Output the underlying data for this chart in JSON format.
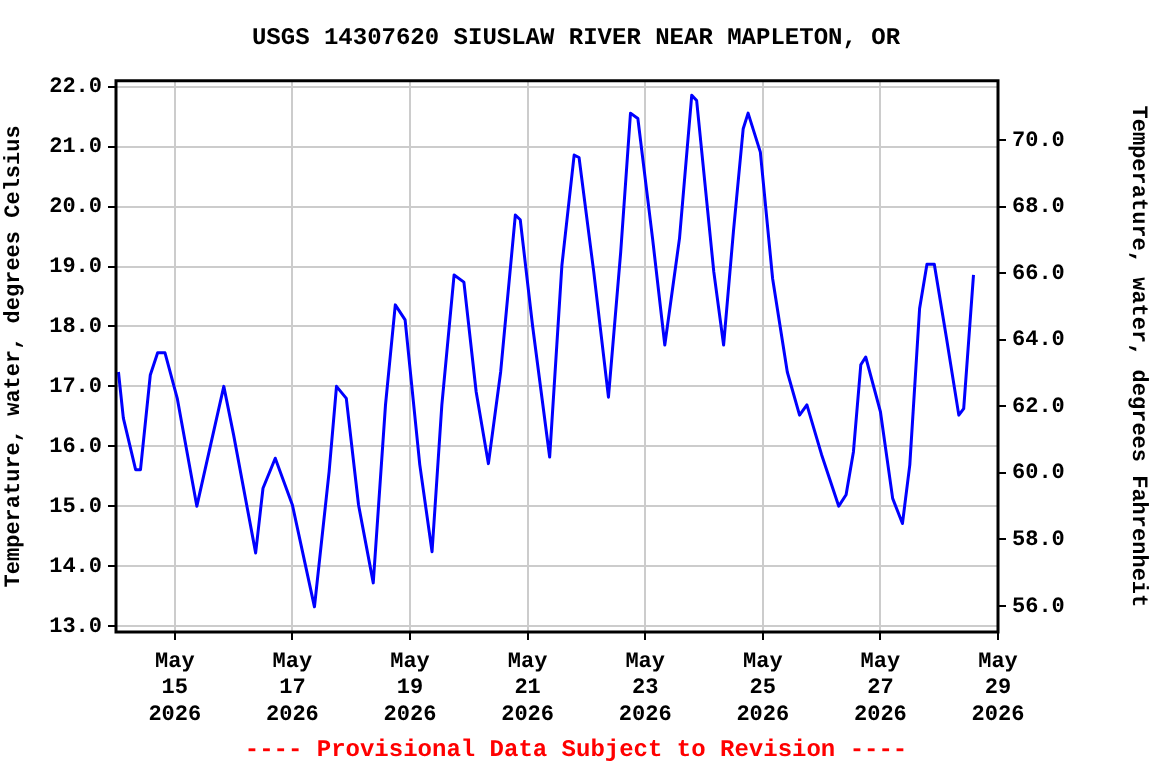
{
  "chart_data": {
    "type": "line",
    "title": "USGS 14307620 SIUSLAW RIVER NEAR MAPLETON, OR",
    "ylabel": "Temperature, water, degrees Celsius",
    "y2label": "Temperature, water, degrees Fahrenheit",
    "annotations": [
      "---- Provisional Data Subject to Revision ----"
    ],
    "x": [
      "2026-05-14T01:00",
      "2026-05-14T03:00",
      "2026-05-14T08:00",
      "2026-05-14T10:00",
      "2026-05-14T14:00",
      "2026-05-14T17:00",
      "2026-05-14T20:00",
      "2026-05-15T01:00",
      "2026-05-15T09:00",
      "2026-05-15T14:00",
      "2026-05-15T20:00",
      "2026-05-16T00:00",
      "2026-05-16T09:00",
      "2026-05-16T12:00",
      "2026-05-16T17:00",
      "2026-05-17T00:00",
      "2026-05-17T09:00",
      "2026-05-17T15:00",
      "2026-05-17T18:00",
      "2026-05-17T22:00",
      "2026-05-18T03:00",
      "2026-05-18T09:00",
      "2026-05-18T14:00",
      "2026-05-18T18:00",
      "2026-05-18T22:00",
      "2026-05-19T04:00",
      "2026-05-19T09:00",
      "2026-05-19T13:00",
      "2026-05-19T18:00",
      "2026-05-19T22:00",
      "2026-05-20T03:00",
      "2026-05-20T08:00",
      "2026-05-20T13:00",
      "2026-05-20T19:00",
      "2026-05-20T21:00",
      "2026-05-21T02:00",
      "2026-05-21T09:00",
      "2026-05-21T14:00",
      "2026-05-21T19:00",
      "2026-05-21T21:00",
      "2026-05-22T03:00",
      "2026-05-22T09:00",
      "2026-05-22T14:00",
      "2026-05-22T18:00",
      "2026-05-22T21:00",
      "2026-05-23T03:00",
      "2026-05-23T08:00",
      "2026-05-23T14:00",
      "2026-05-23T19:00",
      "2026-05-23T21:00",
      "2026-05-24T04:00",
      "2026-05-24T08:00",
      "2026-05-24T12:00",
      "2026-05-24T16:00",
      "2026-05-24T18:00",
      "2026-05-24T23:00",
      "2026-05-25T04:00",
      "2026-05-25T10:00",
      "2026-05-25T15:00",
      "2026-05-25T18:00",
      "2026-05-26T00:00",
      "2026-05-26T07:00",
      "2026-05-26T10:00",
      "2026-05-26T13:00",
      "2026-05-26T16:00",
      "2026-05-26T18:00",
      "2026-05-27T00:00",
      "2026-05-27T05:00",
      "2026-05-27T09:00",
      "2026-05-27T12:00",
      "2026-05-27T16:00",
      "2026-05-27T19:00",
      "2026-05-27T22:00",
      "2026-05-28T03:00",
      "2026-05-28T08:00",
      "2026-05-28T10:00",
      "2026-05-28T14:00"
    ],
    "series": [
      {
        "color": "#0000ff",
        "values": [
          17.24,
          16.47,
          15.61,
          15.61,
          17.19,
          17.56,
          17.56,
          16.8,
          15.0,
          15.91,
          17.0,
          16.19,
          14.22,
          15.3,
          15.8,
          15.02,
          13.32,
          15.58,
          17.0,
          16.8,
          15.02,
          13.72,
          16.69,
          18.36,
          18.11,
          15.69,
          14.24,
          16.69,
          18.86,
          18.74,
          16.91,
          15.71,
          17.24,
          19.86,
          19.78,
          18.02,
          15.82,
          19.02,
          20.86,
          20.82,
          18.91,
          16.82,
          19.24,
          21.56,
          21.47,
          19.47,
          17.69,
          19.47,
          21.86,
          21.77,
          18.91,
          17.69,
          19.58,
          21.3,
          21.56,
          20.91,
          18.8,
          17.24,
          16.52,
          16.69,
          15.86,
          15.0,
          15.19,
          15.91,
          17.36,
          17.49,
          16.58,
          15.13,
          14.71,
          15.69,
          18.3,
          19.04,
          19.04,
          17.8,
          16.52,
          16.63,
          18.86
        ]
      }
    ],
    "xlim": [
      "2026-05-14",
      "2026-05-29"
    ],
    "xticks": [
      {
        "value": "2026-05-15",
        "label": "May\n15\n2026"
      },
      {
        "value": "2026-05-17",
        "label": "May\n17\n2026"
      },
      {
        "value": "2026-05-19",
        "label": "May\n19\n2026"
      },
      {
        "value": "2026-05-21",
        "label": "May\n21\n2026"
      },
      {
        "value": "2026-05-23",
        "label": "May\n23\n2026"
      },
      {
        "value": "2026-05-25",
        "label": "May\n25\n2026"
      },
      {
        "value": "2026-05-27",
        "label": "May\n27\n2026"
      },
      {
        "value": "2026-05-29",
        "label": "May\n29\n2026"
      }
    ],
    "ylim": [
      12.9,
      22.1
    ],
    "yticks": [
      {
        "value": 13,
        "label": "13.0"
      },
      {
        "value": 14,
        "label": "14.0"
      },
      {
        "value": 15,
        "label": "15.0"
      },
      {
        "value": 16,
        "label": "16.0"
      },
      {
        "value": 17,
        "label": "17.0"
      },
      {
        "value": 18,
        "label": "18.0"
      },
      {
        "value": 19,
        "label": "19.0"
      },
      {
        "value": 20,
        "label": "20.0"
      },
      {
        "value": 21,
        "label": "21.0"
      },
      {
        "value": 22,
        "label": "22.0"
      }
    ],
    "y2lim": [
      55.22,
      71.78
    ],
    "y2ticks": [
      {
        "value": 56,
        "label": "56.0"
      },
      {
        "value": 58,
        "label": "58.0"
      },
      {
        "value": 60,
        "label": "60.0"
      },
      {
        "value": 62,
        "label": "62.0"
      },
      {
        "value": 64,
        "label": "64.0"
      },
      {
        "value": 66,
        "label": "66.0"
      },
      {
        "value": 68,
        "label": "68.0"
      },
      {
        "value": 70,
        "label": "70.0"
      }
    ],
    "grid": true,
    "legend": false,
    "marker": "none",
    "line_style": "solid"
  }
}
